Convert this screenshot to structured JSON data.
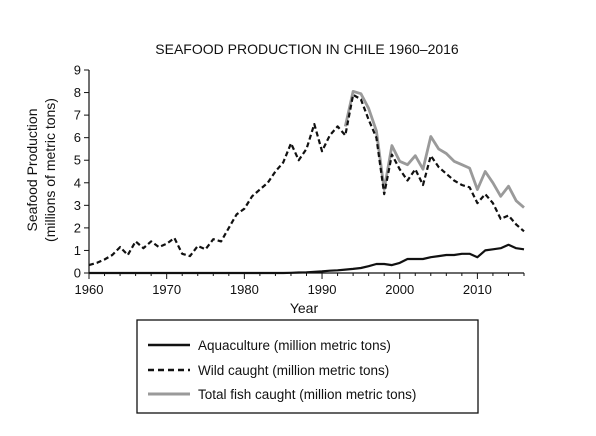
{
  "chart_data": {
    "type": "line",
    "title": "SEAFOOD PRODUCTION IN CHILE 1960–2016",
    "xlabel": "Year",
    "ylabel_line1": "Seafood Production",
    "ylabel_line2": "(millions of metric tons)",
    "xlim": [
      1960,
      2016
    ],
    "ylim": [
      0,
      9
    ],
    "x_ticks": [
      "1960",
      "1970",
      "1980",
      "1990",
      "2000",
      "2010"
    ],
    "y_ticks": [
      "0",
      "1",
      "2",
      "3",
      "4",
      "5",
      "6",
      "7",
      "8",
      "9"
    ],
    "grid": false,
    "legend_position": "bottom",
    "x": [
      1960,
      1961,
      1962,
      1963,
      1964,
      1965,
      1966,
      1967,
      1968,
      1969,
      1970,
      1971,
      1972,
      1973,
      1974,
      1975,
      1976,
      1977,
      1978,
      1979,
      1980,
      1981,
      1982,
      1983,
      1984,
      1985,
      1986,
      1987,
      1988,
      1989,
      1990,
      1991,
      1992,
      1993,
      1994,
      1995,
      1996,
      1997,
      1998,
      1999,
      2000,
      2001,
      2002,
      2003,
      2004,
      2005,
      2006,
      2007,
      2008,
      2009,
      2010,
      2011,
      2012,
      2013,
      2014,
      2015,
      2016
    ],
    "series": [
      {
        "name": "Aquaculture (million metric tons)",
        "style": "solid",
        "color": "#111111",
        "values": [
          0,
          0,
          0,
          0,
          0,
          0,
          0,
          0,
          0,
          0,
          0,
          0,
          0,
          0,
          0,
          0,
          0,
          0,
          0,
          0,
          0,
          0,
          0,
          0,
          0,
          0,
          0.01,
          0.02,
          0.03,
          0.05,
          0.07,
          0.1,
          0.12,
          0.15,
          0.18,
          0.22,
          0.3,
          0.4,
          0.4,
          0.35,
          0.45,
          0.62,
          0.62,
          0.62,
          0.7,
          0.75,
          0.8,
          0.8,
          0.85,
          0.85,
          0.7,
          1.0,
          1.05,
          1.1,
          1.25,
          1.1,
          1.05
        ]
      },
      {
        "name": "Wild caught (million metric tons)",
        "style": "dashed",
        "color": "#111111",
        "values": [
          0.35,
          0.45,
          0.6,
          0.8,
          1.15,
          0.8,
          1.4,
          1.1,
          1.4,
          1.15,
          1.3,
          1.55,
          0.85,
          0.75,
          1.2,
          1.05,
          1.5,
          1.4,
          2.0,
          2.6,
          2.85,
          3.4,
          3.7,
          4.0,
          4.5,
          4.9,
          5.75,
          5.0,
          5.5,
          6.6,
          5.4,
          6.1,
          6.5,
          6.1,
          7.9,
          7.7,
          6.8,
          6.0,
          3.5,
          5.25,
          4.6,
          4.1,
          4.6,
          3.9,
          5.2,
          4.7,
          4.4,
          4.1,
          3.9,
          3.8,
          3.1,
          3.5,
          3.1,
          2.4,
          2.55,
          2.15,
          1.85
        ]
      },
      {
        "name": "Total fish caught (million metric tons)",
        "style": "solid",
        "color": "#9a9a9a",
        "values": [
          null,
          null,
          null,
          null,
          null,
          null,
          null,
          null,
          null,
          null,
          null,
          null,
          null,
          null,
          null,
          null,
          null,
          null,
          null,
          null,
          null,
          null,
          null,
          null,
          null,
          null,
          null,
          null,
          null,
          null,
          null,
          null,
          null,
          6.5,
          8.05,
          7.95,
          7.3,
          6.3,
          3.7,
          5.65,
          4.95,
          4.8,
          5.2,
          4.6,
          6.05,
          5.5,
          5.3,
          4.95,
          4.8,
          4.65,
          3.7,
          4.5,
          4.0,
          3.4,
          3.85,
          3.2,
          2.9
        ]
      }
    ]
  }
}
